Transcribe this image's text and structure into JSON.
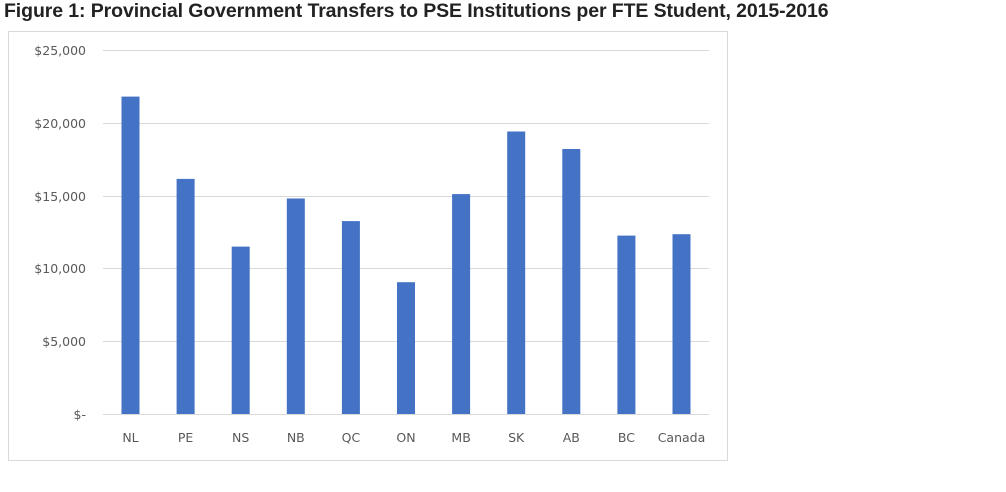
{
  "figure_title": "Figure 1: Provincial Government Transfers to PSE Institutions per FTE Student, 2015-2016",
  "chart_data": {
    "type": "bar",
    "title": "",
    "xlabel": "",
    "ylabel": "",
    "categories": [
      "NL",
      "PE",
      "NS",
      "NB",
      "QC",
      "ON",
      "MB",
      "SK",
      "AB",
      "BC",
      "Canada"
    ],
    "values": [
      21800,
      16150,
      11500,
      14800,
      13250,
      9050,
      15100,
      19400,
      18200,
      12250,
      12350
    ],
    "ylim": [
      0,
      25000
    ],
    "yticks": [
      0,
      5000,
      10000,
      15000,
      20000,
      25000
    ],
    "ytick_labels": [
      "$-",
      "$5,000",
      "$10,000",
      "$15,000",
      "$20,000",
      "$25,000"
    ],
    "grid": true,
    "legend": "none",
    "bar_color": "#4472c4",
    "grid_color": "#d9d9d9"
  }
}
